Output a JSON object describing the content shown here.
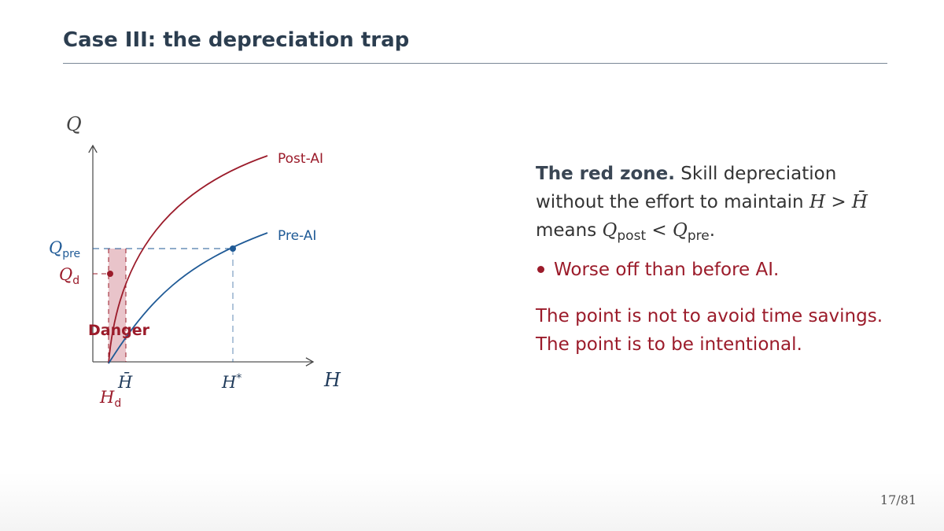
{
  "header": {
    "title": "Case III: the depreciation trap"
  },
  "diagram": {
    "y_axis_label": "Q",
    "x_axis_label": "H",
    "curves": [
      {
        "label": "Post-AI"
      },
      {
        "label": "Pre-AI"
      }
    ],
    "y_markers": [
      {
        "symbol": "Q",
        "subscript": "pre"
      },
      {
        "symbol": "Q",
        "subscript": "d"
      }
    ],
    "x_markers": [
      {
        "symbol": "H̄"
      },
      {
        "symbol": "H",
        "superscript": "*"
      },
      {
        "symbol": "H",
        "subscript": "d"
      }
    ],
    "zone_label": "Danger"
  },
  "body": {
    "paragraph": {
      "lead": "The red zone.",
      "line1": "Skill depreciation",
      "line2": "without the effort to maintain",
      "math1": "H > H̄",
      "line3": "means",
      "math2": {
        "symbol": "Q",
        "subscript": "post"
      },
      "relation": "<",
      "math3": {
        "symbol": "Q",
        "subscript": "pre"
      },
      "end": "."
    },
    "bullet": "Worse off than before AI.",
    "closing": [
      "The point is not to avoid time savings.",
      "The point is to be intentional."
    ]
  },
  "footer": {
    "page": "17/81"
  }
}
